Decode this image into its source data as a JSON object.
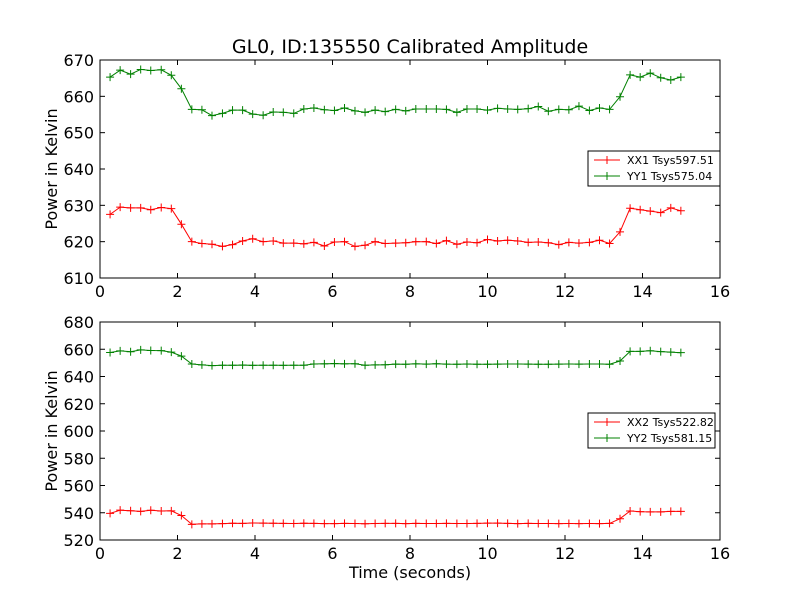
{
  "figure": {
    "title": "GL0, ID:135550 Calibrated Amplitude"
  },
  "chart_data": [
    {
      "type": "line",
      "title": "GL0, ID:135550 Calibrated Amplitude",
      "xlabel": "",
      "ylabel": "Power in Kelvin",
      "xlim": [
        0,
        16
      ],
      "ylim": [
        610,
        670
      ],
      "xticks": [
        "0",
        "2",
        "4",
        "6",
        "8",
        "10",
        "12",
        "14",
        "16"
      ],
      "yticks": [
        "610",
        "620",
        "630",
        "640",
        "650",
        "660",
        "670"
      ],
      "grid": false,
      "legend_position": "center-right",
      "x": [
        0.26,
        0.52,
        0.79,
        1.05,
        1.31,
        1.58,
        1.84,
        2.1,
        2.37,
        2.63,
        2.89,
        3.16,
        3.42,
        3.68,
        3.94,
        4.21,
        4.47,
        4.73,
        5.0,
        5.26,
        5.52,
        5.79,
        6.05,
        6.31,
        6.58,
        6.84,
        7.1,
        7.36,
        7.63,
        7.89,
        8.15,
        8.42,
        8.68,
        8.94,
        9.21,
        9.47,
        9.73,
        10.0,
        10.26,
        10.52,
        10.78,
        11.05,
        11.31,
        11.57,
        11.84,
        12.1,
        12.36,
        12.63,
        12.89,
        13.15,
        13.42,
        13.68,
        13.94,
        14.2,
        14.47,
        14.73,
        14.99
      ],
      "series": [
        {
          "name": "XX1 Tsys597.51",
          "color": "#ff0000",
          "values": [
            627.5,
            629.5,
            629.3,
            629.3,
            628.8,
            629.4,
            629.1,
            624.8,
            620.0,
            619.5,
            619.3,
            618.7,
            619.2,
            620.2,
            620.8,
            620.0,
            620.2,
            619.6,
            619.6,
            619.4,
            619.8,
            618.8,
            619.9,
            620.0,
            618.7,
            619.0,
            620.0,
            619.5,
            619.6,
            619.7,
            620.0,
            620.0,
            619.5,
            620.3,
            619.3,
            619.9,
            619.7,
            620.6,
            620.2,
            620.4,
            620.2,
            619.8,
            619.9,
            619.7,
            619.2,
            619.8,
            619.6,
            619.8,
            620.4,
            619.5,
            622.7,
            629.2,
            628.8,
            628.4,
            628.0,
            629.3,
            628.5
          ]
        },
        {
          "name": "YY1 Tsys575.04",
          "color": "#008000",
          "values": [
            665.3,
            667.2,
            666.1,
            667.4,
            667.1,
            667.3,
            665.8,
            662.1,
            656.4,
            656.3,
            654.7,
            655.3,
            656.2,
            656.2,
            655.1,
            654.8,
            655.7,
            655.6,
            655.3,
            656.5,
            656.8,
            656.3,
            656.1,
            656.8,
            656.0,
            655.6,
            656.2,
            655.8,
            656.4,
            656.0,
            656.5,
            656.5,
            656.5,
            656.4,
            655.6,
            656.5,
            656.5,
            656.2,
            656.7,
            656.5,
            656.4,
            656.6,
            657.2,
            655.9,
            656.4,
            656.3,
            657.3,
            656.1,
            656.8,
            656.4,
            659.9,
            665.9,
            665.3,
            666.4,
            665.1,
            664.5,
            665.3
          ]
        }
      ]
    },
    {
      "type": "line",
      "title": "",
      "xlabel": "Time (seconds)",
      "ylabel": "Power in Kelvin",
      "xlim": [
        0,
        16
      ],
      "ylim": [
        520,
        680
      ],
      "xticks": [
        "0",
        "2",
        "4",
        "6",
        "8",
        "10",
        "12",
        "14",
        "16"
      ],
      "yticks": [
        "520",
        "540",
        "560",
        "580",
        "600",
        "620",
        "640",
        "660",
        "680"
      ],
      "grid": false,
      "legend_position": "center-right",
      "x": [
        0.26,
        0.52,
        0.79,
        1.05,
        1.31,
        1.58,
        1.84,
        2.1,
        2.37,
        2.63,
        2.89,
        3.16,
        3.42,
        3.68,
        3.94,
        4.21,
        4.47,
        4.73,
        5.0,
        5.26,
        5.52,
        5.79,
        6.05,
        6.31,
        6.58,
        6.84,
        7.1,
        7.36,
        7.63,
        7.89,
        8.15,
        8.42,
        8.68,
        8.94,
        9.21,
        9.47,
        9.73,
        10.0,
        10.26,
        10.52,
        10.78,
        11.05,
        11.31,
        11.57,
        11.84,
        12.1,
        12.36,
        12.63,
        12.89,
        13.15,
        13.42,
        13.68,
        13.94,
        14.2,
        14.47,
        14.73,
        14.99
      ],
      "series": [
        {
          "name": "XX2 Tsys522.82",
          "color": "#ff0000",
          "values": [
            539.5,
            541.9,
            541.5,
            541.0,
            541.8,
            541.3,
            541.4,
            538.0,
            531.5,
            531.8,
            531.8,
            532.0,
            532.3,
            532.2,
            532.5,
            532.4,
            532.3,
            532.2,
            532.1,
            532.3,
            532.2,
            532.0,
            532.0,
            532.2,
            532.1,
            531.9,
            532.1,
            532.2,
            532.2,
            532.0,
            532.2,
            532.1,
            532.1,
            532.2,
            532.1,
            532.1,
            532.2,
            532.4,
            532.4,
            532.2,
            532.0,
            532.2,
            532.1,
            532.1,
            532.0,
            532.1,
            532.0,
            532.1,
            532.0,
            532.2,
            535.6,
            541.3,
            540.8,
            540.6,
            540.6,
            541.0,
            541.0
          ]
        },
        {
          "name": "YY2 Tsys581.15",
          "color": "#008000",
          "values": [
            657.6,
            658.8,
            658.2,
            659.5,
            659.1,
            659.0,
            657.9,
            655.0,
            649.2,
            648.5,
            648.0,
            648.3,
            648.3,
            648.4,
            648.2,
            648.3,
            648.3,
            648.2,
            648.3,
            648.3,
            649.2,
            649.3,
            649.5,
            649.3,
            649.4,
            648.3,
            648.5,
            648.6,
            649.1,
            649.0,
            649.3,
            649.1,
            649.4,
            649.1,
            649.0,
            649.2,
            649.0,
            649.0,
            649.1,
            649.2,
            649.2,
            649.1,
            649.0,
            649.0,
            649.1,
            649.2,
            649.1,
            649.2,
            649.2,
            649.0,
            651.4,
            658.4,
            658.4,
            658.9,
            658.3,
            657.9,
            657.5
          ]
        }
      ]
    }
  ]
}
